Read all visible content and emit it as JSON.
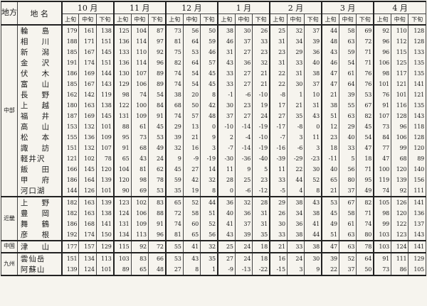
{
  "header": {
    "region": "地方",
    "name": "地 名",
    "months": [
      "10 月",
      "11 月",
      "12 月",
      "1 月",
      "2 月",
      "3 月",
      "4 月"
    ],
    "periods": [
      "上旬",
      "中旬",
      "下旬"
    ]
  },
  "groups": [
    {
      "region": "中部",
      "rows": [
        {
          "name": "輪 島",
          "values": [
            "179",
            "161",
            "138",
            "125",
            "104",
            "87",
            "73",
            "56",
            "50",
            "38",
            "30",
            "26",
            "25",
            "32",
            "37",
            "44",
            "58",
            "69",
            "92",
            "110",
            "128"
          ]
        },
        {
          "name": "相 川",
          "values": [
            "188",
            "171",
            "151",
            "136",
            "114",
            "97",
            "81",
            "64",
            "59",
            "46",
            "37",
            "33",
            "31",
            "34",
            "39",
            "48",
            "63",
            "72",
            "96",
            "112",
            "128"
          ]
        },
        {
          "name": "新 潟",
          "values": [
            "185",
            "167",
            "145",
            "133",
            "110",
            "92",
            "75",
            "53",
            "46",
            "31",
            "27",
            "23",
            "23",
            "29",
            "36",
            "43",
            "59",
            "71",
            "96",
            "115",
            "133"
          ]
        },
        {
          "name": "金 沢",
          "values": [
            "191",
            "174",
            "151",
            "136",
            "114",
            "96",
            "82",
            "64",
            "57",
            "43",
            "36",
            "32",
            "31",
            "33",
            "40",
            "46",
            "54",
            "71",
            "106",
            "125",
            "135"
          ]
        },
        {
          "name": "伏 木",
          "values": [
            "186",
            "169",
            "144",
            "130",
            "107",
            "89",
            "74",
            "54",
            "45",
            "33",
            "27",
            "21",
            "22",
            "31",
            "38",
            "47",
            "61",
            "76",
            "98",
            "117",
            "135"
          ]
        },
        {
          "name": "富 山",
          "values": [
            "185",
            "167",
            "143",
            "129",
            "106",
            "89",
            "74",
            "54",
            "45",
            "33",
            "27",
            "21",
            "22",
            "30",
            "37",
            "47",
            "64",
            "76",
            "101",
            "121",
            "141"
          ]
        },
        {
          "name": "長 野",
          "values": [
            "162",
            "142",
            "119",
            "98",
            "74",
            "54",
            "38",
            "20",
            "8",
            "-1",
            "-6",
            "-10",
            "-8",
            "1",
            "10",
            "21",
            "39",
            "53",
            "76",
            "101",
            "121"
          ]
        },
        {
          "name": "上 越",
          "values": [
            "180",
            "163",
            "138",
            "122",
            "100",
            "84",
            "68",
            "50",
            "42",
            "30",
            "23",
            "19",
            "17",
            "21",
            "31",
            "38",
            "55",
            "67",
            "91",
            "116",
            "135"
          ]
        },
        {
          "name": "福 井",
          "values": [
            "187",
            "169",
            "145",
            "131",
            "109",
            "91",
            "74",
            "57",
            "48",
            "37",
            "27",
            "24",
            "27",
            "35",
            "43",
            "51",
            "63",
            "82",
            "107",
            "128",
            "143"
          ]
        },
        {
          "name": "高 山",
          "values": [
            "153",
            "132",
            "101",
            "88",
            "61",
            "45",
            "29",
            "13",
            "0",
            "-10",
            "-14",
            "-19",
            "-17",
            "-8",
            "0",
            "12",
            "29",
            "45",
            "73",
            "96",
            "118"
          ]
        },
        {
          "name": "松 本",
          "values": [
            "155",
            "136",
            "109",
            "95",
            "73",
            "53",
            "39",
            "21",
            "9",
            "2",
            "-4",
            "-10",
            "-7",
            "3",
            "11",
            "23",
            "40",
            "54",
            "84",
            "106",
            "128"
          ]
        },
        {
          "name": "諏 訪",
          "values": [
            "151",
            "132",
            "107",
            "91",
            "68",
            "49",
            "32",
            "16",
            "3",
            "-7",
            "-14",
            "-19",
            "-16",
            "-6",
            "3",
            "18",
            "33",
            "47",
            "77",
            "99",
            "120"
          ]
        },
        {
          "name": "軽井沢",
          "values": [
            "121",
            "102",
            "78",
            "65",
            "43",
            "24",
            "9",
            "-9",
            "-19",
            "-30",
            "-36",
            "-40",
            "-39",
            "-29",
            "-23",
            "-11",
            "5",
            "18",
            "47",
            "68",
            "89"
          ]
        },
        {
          "name": "飯 田",
          "values": [
            "166",
            "145",
            "120",
            "104",
            "81",
            "62",
            "45",
            "27",
            "14",
            "11",
            "9",
            "5",
            "11",
            "22",
            "30",
            "40",
            "56",
            "71",
            "100",
            "120",
            "140"
          ]
        },
        {
          "name": "甲 府",
          "values": [
            "186",
            "164",
            "139",
            "120",
            "98",
            "78",
            "59",
            "42",
            "32",
            "28",
            "25",
            "23",
            "33",
            "44",
            "52",
            "65",
            "80",
            "95",
            "119",
            "139",
            "156"
          ]
        },
        {
          "name": "河口湖",
          "values": [
            "144",
            "126",
            "101",
            "90",
            "69",
            "53",
            "35",
            "19",
            "8",
            "0",
            "-6",
            "-12",
            "-5",
            "4",
            "8",
            "21",
            "37",
            "49",
            "74",
            "92",
            "111"
          ]
        }
      ]
    },
    {
      "region": "近畿",
      "rows": [
        {
          "name": "上 野",
          "values": [
            "182",
            "163",
            "139",
            "123",
            "102",
            "83",
            "65",
            "52",
            "44",
            "36",
            "32",
            "28",
            "29",
            "38",
            "43",
            "53",
            "67",
            "82",
            "105",
            "126",
            "141"
          ]
        },
        {
          "name": "豊 岡",
          "values": [
            "182",
            "163",
            "138",
            "124",
            "106",
            "88",
            "72",
            "58",
            "51",
            "40",
            "36",
            "31",
            "26",
            "34",
            "38",
            "45",
            "58",
            "71",
            "98",
            "120",
            "136"
          ]
        },
        {
          "name": "舞 鶴",
          "values": [
            "186",
            "168",
            "141",
            "131",
            "109",
            "91",
            "74",
            "60",
            "52",
            "41",
            "37",
            "31",
            "30",
            "36",
            "41",
            "49",
            "61",
            "74",
            "99",
            "122",
            "137"
          ]
        },
        {
          "name": "彦 根",
          "values": [
            "192",
            "174",
            "150",
            "134",
            "113",
            "96",
            "81",
            "65",
            "56",
            "43",
            "39",
            "35",
            "33",
            "38",
            "44",
            "51",
            "63",
            "80",
            "103",
            "123",
            "143"
          ]
        }
      ]
    },
    {
      "region": "中国",
      "rows": [
        {
          "name": "津 山",
          "values": [
            "177",
            "157",
            "129",
            "115",
            "92",
            "72",
            "55",
            "41",
            "32",
            "25",
            "24",
            "18",
            "21",
            "33",
            "38",
            "47",
            "63",
            "78",
            "103",
            "124",
            "141"
          ]
        }
      ]
    },
    {
      "region": "九州",
      "rows": [
        {
          "name": "雲仙岳",
          "values": [
            "151",
            "134",
            "113",
            "103",
            "83",
            "66",
            "53",
            "43",
            "35",
            "27",
            "24",
            "18",
            "16",
            "24",
            "30",
            "39",
            "52",
            "64",
            "91",
            "111",
            "129"
          ]
        },
        {
          "name": "阿蘇山",
          "values": [
            "139",
            "124",
            "101",
            "89",
            "65",
            "48",
            "27",
            "8",
            "1",
            "-9",
            "-13",
            "-22",
            "-15",
            "3",
            "9",
            "22",
            "37",
            "50",
            "73",
            "86",
            "105"
          ]
        }
      ]
    }
  ]
}
